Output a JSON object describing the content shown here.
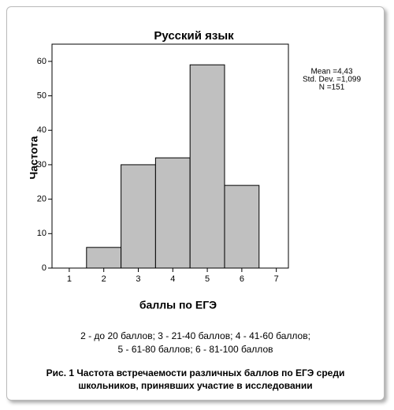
{
  "chart_data": {
    "type": "histogram",
    "title": "Русский язык",
    "xlabel": "баллы по ЕГЭ",
    "ylabel": "Частота",
    "bins": [
      1.5,
      2.5,
      3.5,
      4.5,
      5.5,
      6.5
    ],
    "values": [
      6,
      30,
      32,
      59,
      24
    ],
    "color": "#c0c0c0",
    "xlim": [
      0.5,
      7.35
    ],
    "xticks": [
      1,
      2,
      3,
      4,
      5,
      6,
      7
    ],
    "ylim": [
      0,
      65
    ],
    "yticks": [
      0,
      10,
      20,
      30,
      40,
      50,
      60
    ],
    "grid": false,
    "annotations": [
      "Mean =4,43",
      "Std. Dev. =1,099",
      "N =151"
    ]
  },
  "legend_note": [
    "2 - до 20 баллов; 3 - 21-40 баллов; 4 - 41-60 баллов;",
    "5 - 61-80 баллов; 6 - 81-100 баллов"
  ],
  "caption": [
    "Рис. 1 Частота встречаемости различных баллов по ЕГЭ среди",
    "школьников, принявших участие в исследовании"
  ]
}
